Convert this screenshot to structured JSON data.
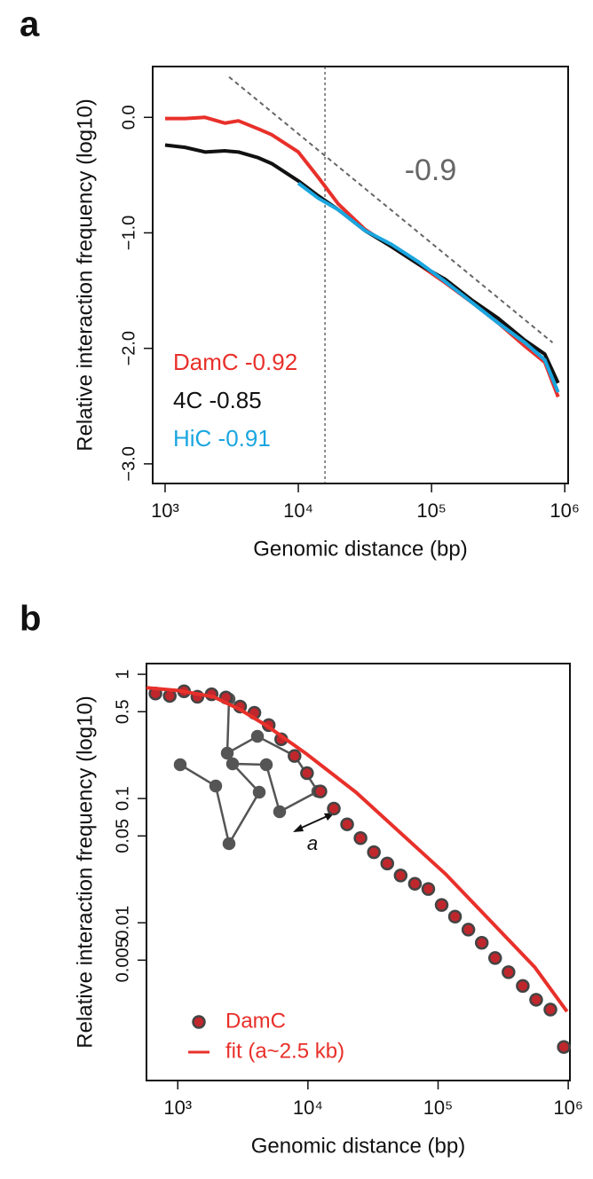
{
  "chart_data": [
    {
      "type": "line",
      "panel_label": "a",
      "x_label": "Genomic distance (bp)",
      "y_label": "Relative interaction frequency (log10)",
      "xlog": true,
      "xlim": [
        807,
        1060000
      ],
      "ylim": [
        -3.17,
        0.44
      ],
      "xticks": [
        {
          "value": 1000,
          "label": "10³"
        },
        {
          "value": 10000,
          "label": "10⁴"
        },
        {
          "value": 100000,
          "label": "10⁵"
        },
        {
          "value": 1000000,
          "label": "10⁶"
        }
      ],
      "yticks": [
        {
          "value": 0,
          "label": "0.0"
        },
        {
          "value": -1,
          "label": "−1.0"
        },
        {
          "value": -2,
          "label": "−2.0"
        },
        {
          "value": -3,
          "label": "−3.0"
        }
      ],
      "x": [
        1000,
        1413,
        1995,
        2818,
        3548,
        5012,
        6310,
        10000,
        14125,
        19953,
        31623,
        50119,
        79433,
        125893,
        199526,
        316228,
        501187,
        707946,
        891251
      ],
      "series": [
        {
          "name": "DamC -0.92",
          "color": "#e8302a",
          "values": [
            -0.01,
            -0.01,
            0.0,
            -0.05,
            -0.03,
            -0.1,
            -0.15,
            -0.3,
            -0.52,
            -0.75,
            -0.97,
            -1.12,
            -1.27,
            -1.43,
            -1.6,
            -1.78,
            -1.98,
            -2.12,
            -2.42
          ]
        },
        {
          "name": "4C -0.85",
          "color": "#111111",
          "values": [
            -0.24,
            -0.26,
            -0.3,
            -0.29,
            -0.3,
            -0.35,
            -0.4,
            -0.55,
            -0.68,
            -0.8,
            -0.98,
            -1.12,
            -1.27,
            -1.4,
            -1.58,
            -1.74,
            -1.93,
            -2.05,
            -2.3
          ]
        },
        {
          "name": "HiC -0.91",
          "color": "#1aa6e0",
          "values": [
            null,
            null,
            null,
            null,
            null,
            null,
            null,
            -0.57,
            -0.7,
            -0.8,
            -0.98,
            -1.1,
            -1.25,
            -1.42,
            -1.6,
            -1.78,
            -1.95,
            -2.1,
            -2.38
          ]
        }
      ],
      "reference_line": {
        "x": [
          3020,
          810000
        ],
        "y": [
          0.35,
          -1.95
        ],
        "label": "-0.9"
      },
      "vline": 15849
    },
    {
      "type": "scatter",
      "panel_label": "b",
      "x_label": "Genomic distance (bp)",
      "y_label": "Relative interaction frequency (log10)",
      "xlog": true,
      "ylog": true,
      "xlim": [
        575,
        1030000
      ],
      "ylim": [
        0.000537,
        1.22
      ],
      "xticks": [
        {
          "value": 1000,
          "label": "10³"
        },
        {
          "value": 10000,
          "label": "10⁴"
        },
        {
          "value": 100000,
          "label": "10⁵"
        },
        {
          "value": 1000000,
          "label": "10⁶"
        }
      ],
      "yticks": [
        1,
        0.5,
        0.1,
        0.05,
        0.01,
        0.005
      ],
      "series": [
        {
          "name": "DamC",
          "type": "scatter",
          "color": "#c0272d",
          "x": [
            674,
            868,
            1117,
            1416,
            1820,
            2344,
            3013,
            3879,
            4998,
            6237,
            7892,
            9840,
            12470,
            15810,
            20010,
            25350,
            32130,
            40700,
            51560,
            66370,
            84100,
            106500,
            134900,
            170900,
            216600,
            274300,
            347600,
            447300,
            566800,
            729400,
            924600
          ],
          "values": [
            0.7,
            0.67,
            0.73,
            0.66,
            0.69,
            0.65,
            0.55,
            0.49,
            0.39,
            0.3,
            0.22,
            0.16,
            0.114,
            0.083,
            0.062,
            0.048,
            0.037,
            0.03,
            0.024,
            0.0206,
            0.0187,
            0.0139,
            0.0112,
            0.0088,
            0.0069,
            0.0052,
            0.004,
            0.0031,
            0.0024,
            0.002,
            0.001
          ]
        },
        {
          "name": "fit (a~2.5 kb)",
          "type": "line",
          "color": "#e8302a",
          "x": [
            575,
            1000,
            1878,
            3013,
            4842,
            9840,
            23470,
            113600,
            552000,
            978000
          ],
          "values": [
            0.78,
            0.74,
            0.66,
            0.52,
            0.385,
            0.227,
            0.112,
            0.0248,
            0.0044,
            0.00193
          ]
        }
      ],
      "inset_label": "a"
    }
  ]
}
